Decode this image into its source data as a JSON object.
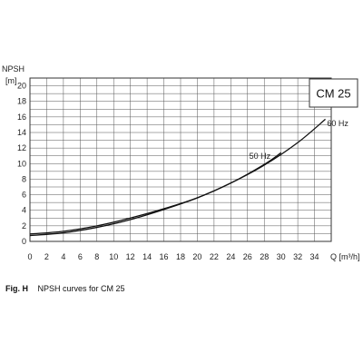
{
  "chart_data": {
    "type": "line",
    "title": "",
    "xlabel": "Q [m³/h]",
    "ylabel_top": "NPSH",
    "ylabel_unit": "[m]",
    "xlim": [
      0,
      36
    ],
    "ylim": [
      0,
      21
    ],
    "x_ticks": [
      0,
      2,
      4,
      6,
      8,
      10,
      12,
      14,
      16,
      18,
      20,
      22,
      24,
      26,
      28,
      30,
      32,
      34
    ],
    "y_ticks": [
      0,
      2,
      4,
      6,
      8,
      10,
      12,
      14,
      16,
      18,
      20
    ],
    "grid": true,
    "model_badge": "CM 25",
    "series": [
      {
        "name": "50 Hz",
        "x": [
          0,
          4,
          8,
          12,
          16,
          20,
          24,
          28,
          30
        ],
        "y": [
          0.75,
          1.1,
          1.8,
          2.8,
          4.1,
          5.6,
          7.5,
          9.9,
          11.4
        ]
      },
      {
        "name": "60 Hz",
        "x": [
          0,
          4,
          8,
          12,
          16,
          20,
          24,
          28,
          32,
          35.3
        ],
        "y": [
          0.95,
          1.3,
          2.0,
          3.0,
          4.2,
          5.6,
          7.5,
          9.8,
          12.7,
          15.7
        ]
      }
    ]
  },
  "caption": {
    "fig_label": "Fig. H",
    "text": "NPSH curves for CM 25"
  }
}
